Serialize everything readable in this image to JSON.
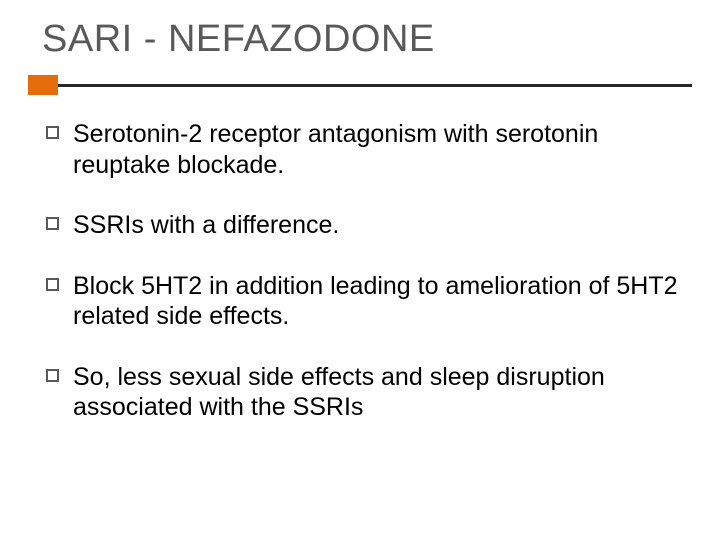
{
  "slide": {
    "title": "SARI - NEFAZODONE",
    "title_color": "#595959",
    "title_fontsize": 38,
    "accent": {
      "block_color": "#e46c0a",
      "line_color": "#262626",
      "block_width": 30,
      "block_height": 20,
      "line_height": 3
    },
    "bullets": [
      {
        "text": "Serotonin-2 receptor antagonism with serotonin reuptake blockade."
      },
      {
        "text": "SSRIs with a difference."
      },
      {
        "text": "Block 5HT2 in addition leading to amelioration of 5HT2 related side effects."
      },
      {
        "text": "So, less sexual side effects and sleep disruption associated with the SSRIs"
      }
    ],
    "bullet_marker_border_color": "#595959",
    "body_fontsize": 25,
    "body_color": "#000000",
    "background_color": "#ffffff"
  }
}
